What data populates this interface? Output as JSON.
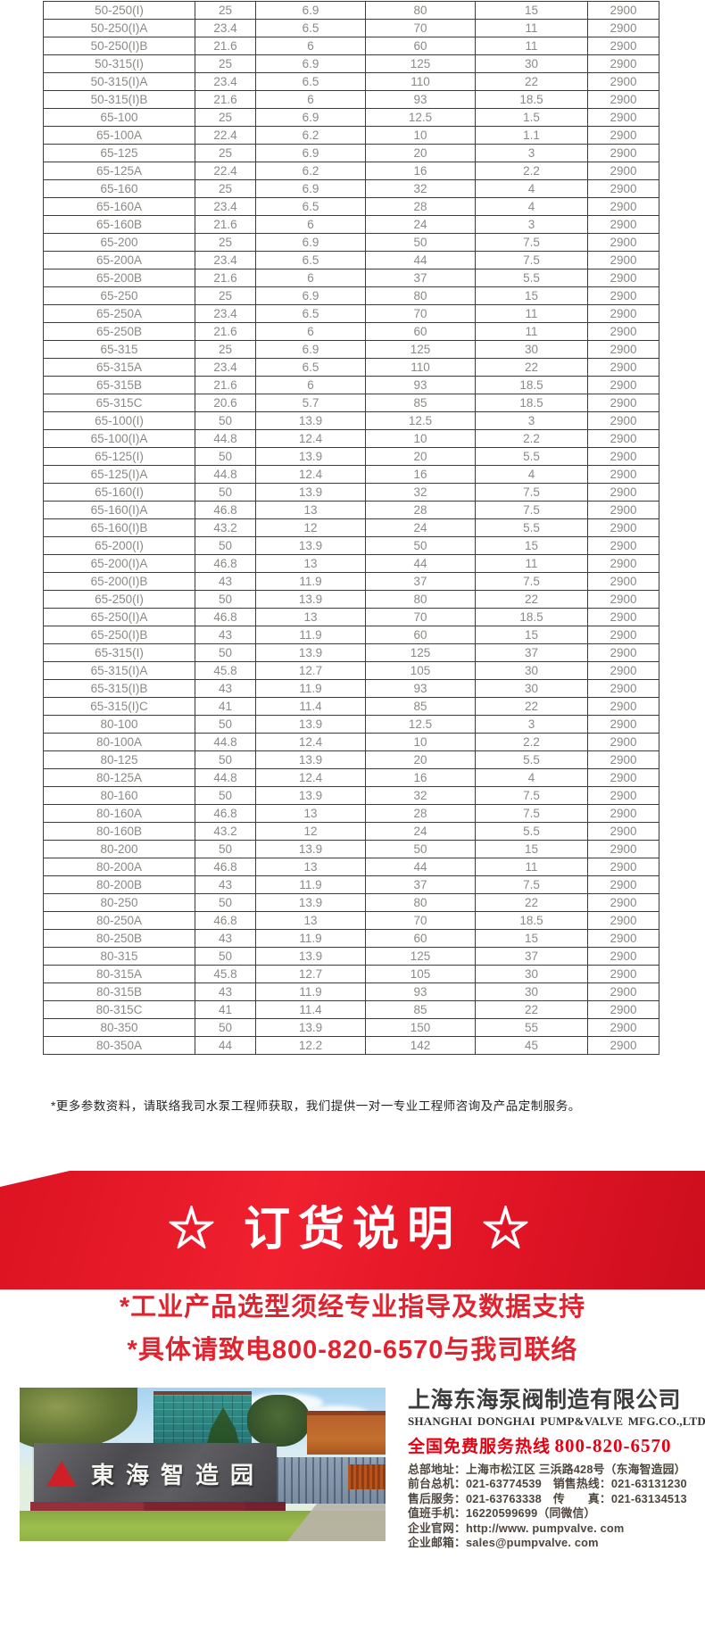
{
  "table": {
    "rows": [
      [
        "50-250(I)",
        "25",
        "6.9",
        "80",
        "15",
        "2900"
      ],
      [
        "50-250(I)A",
        "23.4",
        "6.5",
        "70",
        "11",
        "2900"
      ],
      [
        "50-250(I)B",
        "21.6",
        "6",
        "60",
        "11",
        "2900"
      ],
      [
        "50-315(I)",
        "25",
        "6.9",
        "125",
        "30",
        "2900"
      ],
      [
        "50-315(I)A",
        "23.4",
        "6.5",
        "110",
        "22",
        "2900"
      ],
      [
        "50-315(I)B",
        "21.6",
        "6",
        "93",
        "18.5",
        "2900"
      ],
      [
        "65-100",
        "25",
        "6.9",
        "12.5",
        "1.5",
        "2900"
      ],
      [
        "65-100A",
        "22.4",
        "6.2",
        "10",
        "1.1",
        "2900"
      ],
      [
        "65-125",
        "25",
        "6.9",
        "20",
        "3",
        "2900"
      ],
      [
        "65-125A",
        "22.4",
        "6.2",
        "16",
        "2.2",
        "2900"
      ],
      [
        "65-160",
        "25",
        "6.9",
        "32",
        "4",
        "2900"
      ],
      [
        "65-160A",
        "23.4",
        "6.5",
        "28",
        "4",
        "2900"
      ],
      [
        "65-160B",
        "21.6",
        "6",
        "24",
        "3",
        "2900"
      ],
      [
        "65-200",
        "25",
        "6.9",
        "50",
        "7.5",
        "2900"
      ],
      [
        "65-200A",
        "23.4",
        "6.5",
        "44",
        "7.5",
        "2900"
      ],
      [
        "65-200B",
        "21.6",
        "6",
        "37",
        "5.5",
        "2900"
      ],
      [
        "65-250",
        "25",
        "6.9",
        "80",
        "15",
        "2900"
      ],
      [
        "65-250A",
        "23.4",
        "6.5",
        "70",
        "11",
        "2900"
      ],
      [
        "65-250B",
        "21.6",
        "6",
        "60",
        "11",
        "2900"
      ],
      [
        "65-315",
        "25",
        "6.9",
        "125",
        "30",
        "2900"
      ],
      [
        "65-315A",
        "23.4",
        "6.5",
        "110",
        "22",
        "2900"
      ],
      [
        "65-315B",
        "21.6",
        "6",
        "93",
        "18.5",
        "2900"
      ],
      [
        "65-315C",
        "20.6",
        "5.7",
        "85",
        "18.5",
        "2900"
      ],
      [
        "65-100(I)",
        "50",
        "13.9",
        "12.5",
        "3",
        "2900"
      ],
      [
        "65-100(I)A",
        "44.8",
        "12.4",
        "10",
        "2.2",
        "2900"
      ],
      [
        "65-125(I)",
        "50",
        "13.9",
        "20",
        "5.5",
        "2900"
      ],
      [
        "65-125(I)A",
        "44.8",
        "12.4",
        "16",
        "4",
        "2900"
      ],
      [
        "65-160(I)",
        "50",
        "13.9",
        "32",
        "7.5",
        "2900"
      ],
      [
        "65-160(I)A",
        "46.8",
        "13",
        "28",
        "7.5",
        "2900"
      ],
      [
        "65-160(I)B",
        "43.2",
        "12",
        "24",
        "5.5",
        "2900"
      ],
      [
        "65-200(I)",
        "50",
        "13.9",
        "50",
        "15",
        "2900"
      ],
      [
        "65-200(I)A",
        "46.8",
        "13",
        "44",
        "11",
        "2900"
      ],
      [
        "65-200(I)B",
        "43",
        "11.9",
        "37",
        "7.5",
        "2900"
      ],
      [
        "65-250(I)",
        "50",
        "13.9",
        "80",
        "22",
        "2900"
      ],
      [
        "65-250(I)A",
        "46.8",
        "13",
        "70",
        "18.5",
        "2900"
      ],
      [
        "65-250(I)B",
        "43",
        "11.9",
        "60",
        "15",
        "2900"
      ],
      [
        "65-315(I)",
        "50",
        "13.9",
        "125",
        "37",
        "2900"
      ],
      [
        "65-315(I)A",
        "45.8",
        "12.7",
        "105",
        "30",
        "2900"
      ],
      [
        "65-315(I)B",
        "43",
        "11.9",
        "93",
        "30",
        "2900"
      ],
      [
        "65-315(I)C",
        "41",
        "11.4",
        "85",
        "22",
        "2900"
      ],
      [
        "80-100",
        "50",
        "13.9",
        "12.5",
        "3",
        "2900"
      ],
      [
        "80-100A",
        "44.8",
        "12.4",
        "10",
        "2.2",
        "2900"
      ],
      [
        "80-125",
        "50",
        "13.9",
        "20",
        "5.5",
        "2900"
      ],
      [
        "80-125A",
        "44.8",
        "12.4",
        "16",
        "4",
        "2900"
      ],
      [
        "80-160",
        "50",
        "13.9",
        "32",
        "7.5",
        "2900"
      ],
      [
        "80-160A",
        "46.8",
        "13",
        "28",
        "7.5",
        "2900"
      ],
      [
        "80-160B",
        "43.2",
        "12",
        "24",
        "5.5",
        "2900"
      ],
      [
        "80-200",
        "50",
        "13.9",
        "50",
        "15",
        "2900"
      ],
      [
        "80-200A",
        "46.8",
        "13",
        "44",
        "11",
        "2900"
      ],
      [
        "80-200B",
        "43",
        "11.9",
        "37",
        "7.5",
        "2900"
      ],
      [
        "80-250",
        "50",
        "13.9",
        "80",
        "22",
        "2900"
      ],
      [
        "80-250A",
        "46.8",
        "13",
        "70",
        "18.5",
        "2900"
      ],
      [
        "80-250B",
        "43",
        "11.9",
        "60",
        "15",
        "2900"
      ],
      [
        "80-315",
        "50",
        "13.9",
        "125",
        "37",
        "2900"
      ],
      [
        "80-315A",
        "45.8",
        "12.7",
        "105",
        "30",
        "2900"
      ],
      [
        "80-315B",
        "43",
        "11.9",
        "93",
        "30",
        "2900"
      ],
      [
        "80-315C",
        "41",
        "11.4",
        "85",
        "22",
        "2900"
      ],
      [
        "80-350",
        "50",
        "13.9",
        "150",
        "55",
        "2900"
      ],
      [
        "80-350A",
        "44",
        "12.2",
        "142",
        "45",
        "2900"
      ]
    ]
  },
  "note": "*更多参数资料，请联络我司水泵工程师获取，我们提供一对一专业工程师咨询及产品定制服务。",
  "banner": {
    "title": "☆ 订货说明 ☆"
  },
  "notices": [
    "*工业产品选型须经专业指导及数据支持",
    "*具体请致电800-820-6570与我司联络"
  ],
  "company": {
    "name_cn": "上海东海泵阀制造有限公司",
    "name_en": "SHANGHAI DONGHAI PUMP&VALVE MFG.CO.,LTD.",
    "hotline_label": "全国免费服务热线",
    "hotline_number": "800-820-6570",
    "contact_lines": [
      "总部地址：上海市松江区 三浜路428号（东海智造园）",
      "前台总机：021-63774539　销售热线：021-63131230",
      "售后服务：021-63763338　传　　真：021-63134513",
      "值班手机：16220599699（同微信）",
      "企业官网：http://www. pumpvalve. com",
      "企业邮箱：sales@pumpvalve. com"
    ],
    "photo_sign_text": "東海智造园"
  },
  "colors": {
    "accent_red": "#e60012",
    "banner_red": "#e01425",
    "table_text": "#8a8a85",
    "table_border": "#3c3c3c"
  }
}
